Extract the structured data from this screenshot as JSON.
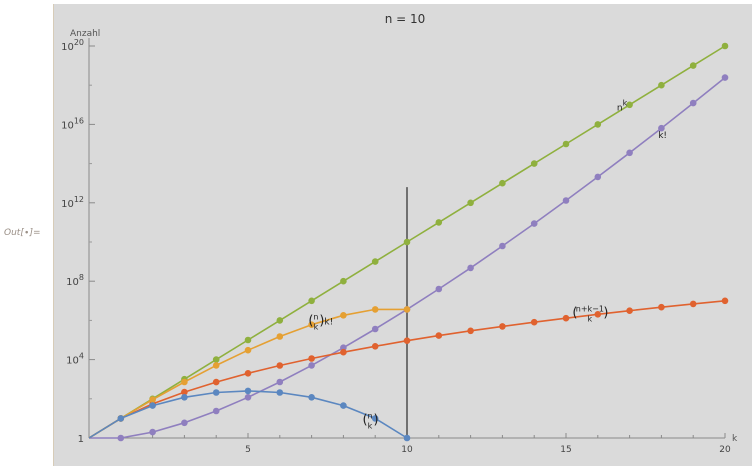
{
  "cell": {
    "out_label": "Out[∙]="
  },
  "chart_data": {
    "type": "line",
    "title": "n = 10",
    "xlabel": "k",
    "ylabel": "Anzahl",
    "xlim": [
      0,
      20
    ],
    "ylim_log10": [
      0,
      20
    ],
    "y_scale": "log10",
    "x_ticks": [
      5,
      10,
      15,
      20
    ],
    "y_ticks": [
      {
        "label": "1",
        "exp": null,
        "value": 1
      },
      {
        "label": "10",
        "exp": "4",
        "value": 10000
      },
      {
        "label": "10",
        "exp": "8",
        "value": 100000000
      },
      {
        "label": "10",
        "exp": "12",
        "value": 1000000000000
      },
      {
        "label": "10",
        "exp": "16",
        "value": 10000000000000000
      },
      {
        "label": "10",
        "exp": "20",
        "value": 100000000000000000000
      }
    ],
    "vertical_line_x": 10,
    "series": [
      {
        "key": "n_pow_k",
        "name": "n^k",
        "color": "#8fb03e",
        "x": [
          1,
          2,
          3,
          4,
          5,
          6,
          7,
          8,
          9,
          10,
          11,
          12,
          13,
          14,
          15,
          16,
          17,
          18,
          19,
          20
        ],
        "log10_y": [
          1,
          2,
          3,
          4,
          5,
          6,
          7,
          8,
          9,
          10,
          11,
          12,
          13,
          14,
          15,
          16,
          17,
          18,
          19,
          20
        ]
      },
      {
        "key": "k_factorial",
        "name": "k!",
        "color": "#8f7fbf",
        "x": [
          1,
          2,
          3,
          4,
          5,
          6,
          7,
          8,
          9,
          10,
          11,
          12,
          13,
          14,
          15,
          16,
          17,
          18,
          19,
          20
        ],
        "log10_y": [
          0,
          0.301,
          0.778,
          1.38,
          2.079,
          2.857,
          3.702,
          4.606,
          5.56,
          6.56,
          7.601,
          8.68,
          9.794,
          10.94,
          12.116,
          13.321,
          14.551,
          15.806,
          17.085,
          18.386
        ]
      },
      {
        "key": "multiset",
        "name": "C(n+k-1, k)",
        "color": "#e0622f",
        "x": [
          1,
          2,
          3,
          4,
          5,
          6,
          7,
          8,
          9,
          10,
          11,
          12,
          13,
          14,
          15,
          16,
          17,
          18,
          19,
          20
        ],
        "log10_y": [
          1,
          1.74,
          2.342,
          2.854,
          3.303,
          3.7,
          4.057,
          4.38,
          4.677,
          4.966,
          5.225,
          5.468,
          5.695,
          5.91,
          6.114,
          6.309,
          6.495,
          6.673,
          6.843,
          7.001
        ]
      },
      {
        "key": "perm",
        "name": "C(n,k)·k!",
        "color": "#e5a033",
        "x": [
          1,
          2,
          3,
          4,
          5,
          6,
          7,
          8,
          9,
          10
        ],
        "log10_y": [
          1,
          1.954,
          2.857,
          3.702,
          4.479,
          5.178,
          5.782,
          6.259,
          6.56,
          6.56
        ]
      },
      {
        "key": "binom",
        "name": "C(n,k)",
        "color": "#5b87c0",
        "x": [
          1,
          2,
          3,
          4,
          5,
          6,
          7,
          8,
          9,
          10
        ],
        "log10_y": [
          1,
          1.653,
          2.079,
          2.322,
          2.401,
          2.322,
          2.079,
          1.653,
          1,
          0
        ]
      }
    ],
    "labels": [
      {
        "series": "n_pow_k",
        "base": "n",
        "sup": "k"
      },
      {
        "series": "k_factorial",
        "text": "k!"
      },
      {
        "series": "multiset",
        "binom_top": "n+k−1",
        "binom_bottom": "k"
      },
      {
        "series": "perm",
        "binom_top": "n",
        "binom_bottom": "k",
        "suffix": "k!"
      },
      {
        "series": "binom",
        "binom_top": "n",
        "binom_bottom": "k"
      }
    ],
    "grid": false,
    "legend": "inline labels"
  }
}
